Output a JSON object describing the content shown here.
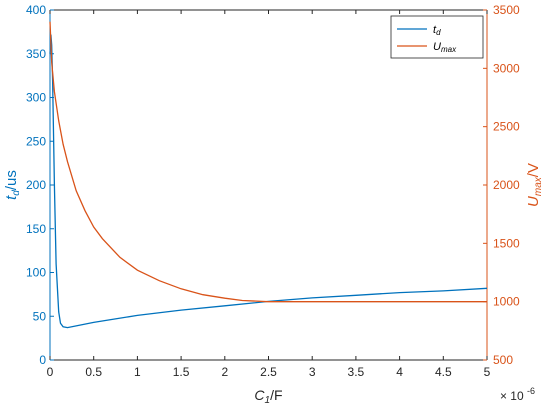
{
  "chart_data": {
    "type": "line",
    "xlabel": "C",
    "xlabel_sub": "1",
    "xlabel_suffix": "/F",
    "x_exponent_label": "× 10",
    "x_exponent": "-6",
    "xlim": [
      0,
      5
    ],
    "x_ticks": [
      "0",
      "0.5",
      "1",
      "1.5",
      "2",
      "2.5",
      "3",
      "3.5",
      "4",
      "4.5",
      "5"
    ],
    "ylabel_left": "t",
    "ylabel_left_sub": "d",
    "ylabel_left_suffix": "/us",
    "ylim_left": [
      0,
      400
    ],
    "y_left_ticks": [
      "0",
      "50",
      "100",
      "150",
      "200",
      "250",
      "300",
      "350",
      "400"
    ],
    "ylabel_right": "U",
    "ylabel_right_sub": "max",
    "ylabel_right_suffix": "/V",
    "ylim_right": [
      500,
      3500
    ],
    "y_right_ticks": [
      "500",
      "1000",
      "1500",
      "2000",
      "2500",
      "3000",
      "3500"
    ],
    "legend_placement": "top-right",
    "grid": false,
    "series": [
      {
        "name": "t",
        "name_sub": "d",
        "axis": "left",
        "color": "#0072BD",
        "x": [
          0,
          0.01,
          0.02,
          0.03,
          0.05,
          0.07,
          0.1,
          0.12,
          0.15,
          0.2,
          0.3,
          0.5,
          0.75,
          1.0,
          1.5,
          2.0,
          2.5,
          3.0,
          3.5,
          4.0,
          4.5,
          5.0
        ],
        "y": [
          350,
          372,
          360,
          320,
          200,
          110,
          55,
          42,
          38,
          37,
          39,
          43,
          47,
          51,
          57,
          62,
          67,
          71,
          74,
          77,
          79,
          82
        ]
      },
      {
        "name": "U",
        "name_sub": "max",
        "axis": "right",
        "color": "#D95319",
        "x": [
          0,
          0.02,
          0.05,
          0.1,
          0.15,
          0.2,
          0.3,
          0.4,
          0.5,
          0.6,
          0.8,
          1.0,
          1.25,
          1.5,
          1.75,
          2.0,
          2.2,
          2.5,
          3.0,
          3.5,
          4.0,
          4.5,
          5.0
        ],
        "y": [
          3400,
          3050,
          2800,
          2550,
          2350,
          2200,
          1950,
          1780,
          1640,
          1540,
          1380,
          1270,
          1180,
          1110,
          1060,
          1030,
          1010,
          1000,
          1000,
          1000,
          1000,
          1000,
          1000
        ]
      }
    ]
  }
}
